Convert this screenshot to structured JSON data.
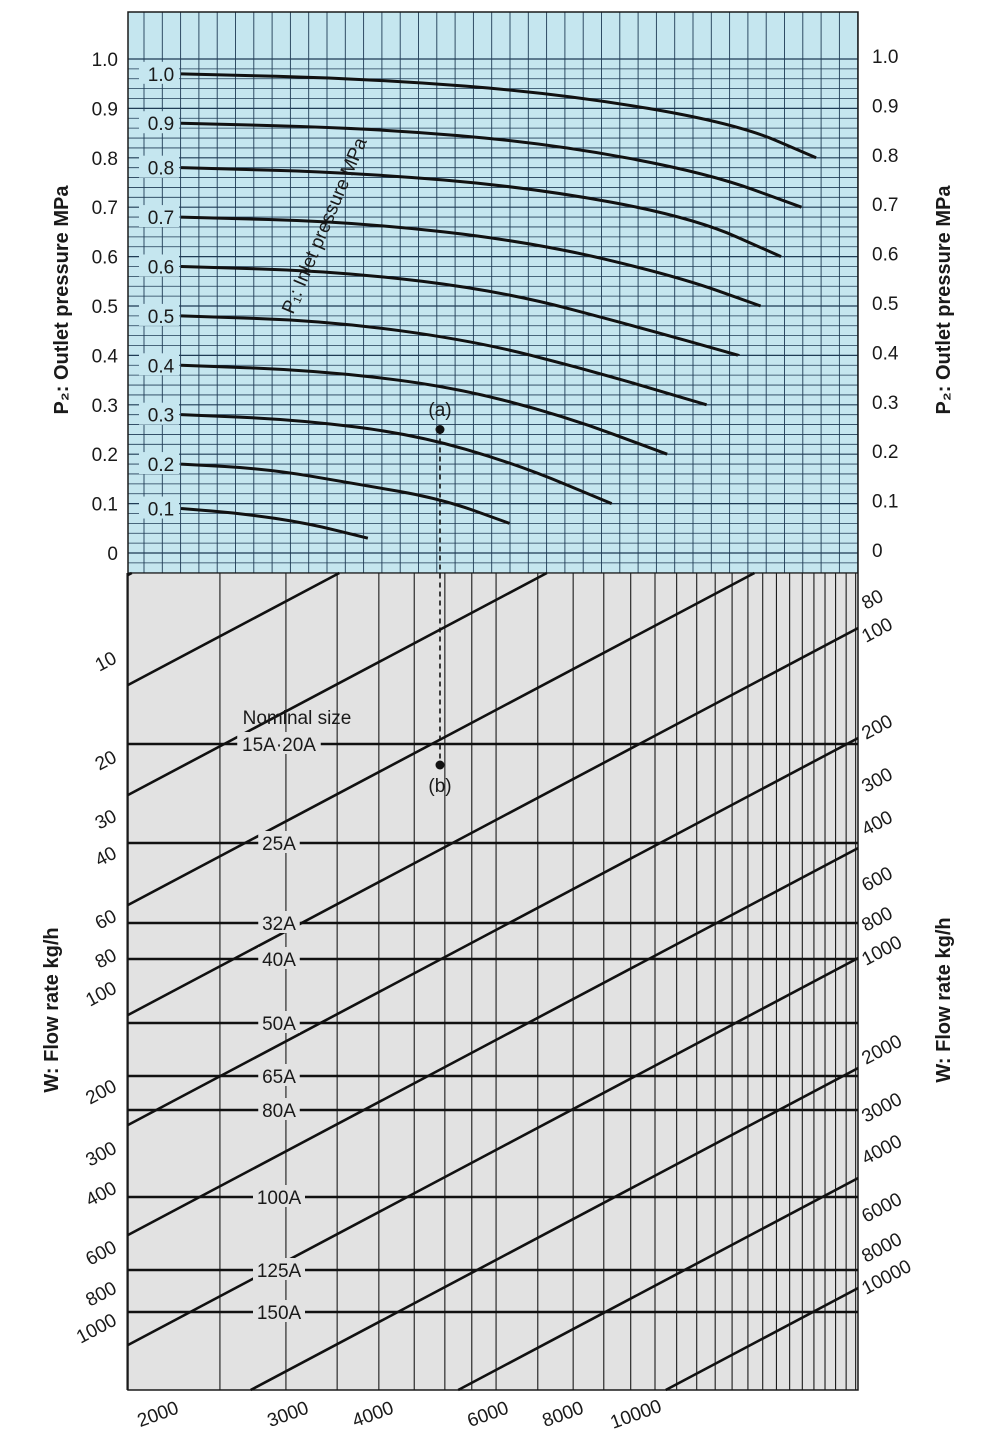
{
  "chart_data": {
    "type": "line",
    "title": "",
    "upper_panel": {
      "ylabel_left": "P₂: Outlet pressure MPa",
      "ylabel_right": "P₂: Outlet pressure MPa",
      "ylim": [
        0,
        1.0
      ],
      "yticks": [
        "0",
        "0.1",
        "0.2",
        "0.3",
        "0.4",
        "0.5",
        "0.6",
        "0.7",
        "0.8",
        "0.9",
        "1.0"
      ],
      "curve_set_label": "P₁: Inlet pressure MPa",
      "series": [
        {
          "name": "0.1",
          "points": [
            [
              0.0,
              0.09
            ],
            [
              0.42,
              0.08
            ],
            [
              0.87,
              0.06
            ],
            [
              1.28,
              0.03
            ]
          ]
        },
        {
          "name": "0.2",
          "points": [
            [
              0.0,
              0.18
            ],
            [
              0.6,
              0.17
            ],
            [
              1.2,
              0.14
            ],
            [
              1.78,
              0.11
            ],
            [
              2.25,
              0.06
            ]
          ]
        },
        {
          "name": "0.3",
          "points": [
            [
              0.0,
              0.28
            ],
            [
              0.8,
              0.27
            ],
            [
              1.6,
              0.24
            ],
            [
              2.3,
              0.18
            ],
            [
              2.95,
              0.1
            ]
          ]
        },
        {
          "name": "0.4",
          "points": [
            [
              0.0,
              0.38
            ],
            [
              0.9,
              0.37
            ],
            [
              1.8,
              0.34
            ],
            [
              2.6,
              0.28
            ],
            [
              3.33,
              0.2
            ]
          ]
        },
        {
          "name": "0.5",
          "points": [
            [
              0.0,
              0.48
            ],
            [
              1.0,
              0.47
            ],
            [
              2.0,
              0.43
            ],
            [
              2.8,
              0.37
            ],
            [
              3.6,
              0.3
            ]
          ]
        },
        {
          "name": "0.6",
          "points": [
            [
              0.0,
              0.58
            ],
            [
              1.1,
              0.57
            ],
            [
              2.2,
              0.53
            ],
            [
              3.1,
              0.46
            ],
            [
              3.82,
              0.4
            ]
          ]
        },
        {
          "name": "0.7",
          "points": [
            [
              0.0,
              0.68
            ],
            [
              1.2,
              0.67
            ],
            [
              2.4,
              0.63
            ],
            [
              3.4,
              0.56
            ],
            [
              3.97,
              0.5
            ]
          ]
        },
        {
          "name": "0.8",
          "points": [
            [
              0.0,
              0.78
            ],
            [
              1.2,
              0.77
            ],
            [
              2.4,
              0.74
            ],
            [
              3.5,
              0.68
            ],
            [
              4.11,
              0.6
            ]
          ]
        },
        {
          "name": "0.9",
          "points": [
            [
              0.0,
              0.87
            ],
            [
              1.3,
              0.86
            ],
            [
              2.5,
              0.83
            ],
            [
              3.6,
              0.77
            ],
            [
              4.25,
              0.7
            ]
          ]
        },
        {
          "name": "1.0",
          "points": [
            [
              0.0,
              0.97
            ],
            [
              1.3,
              0.96
            ],
            [
              2.6,
              0.93
            ],
            [
              3.8,
              0.87
            ],
            [
              4.35,
              0.8
            ]
          ]
        }
      ],
      "example_point": {
        "label": "(a)",
        "p1": 0.3,
        "p2": 0.25
      }
    },
    "lower_panel": {
      "nominal_size_title": "Nominal size",
      "nominal_sizes": [
        "15A·20A",
        "25A",
        "32A",
        "40A",
        "50A",
        "65A",
        "80A",
        "100A",
        "125A",
        "150A"
      ],
      "flow_left_ticks": [
        "10",
        "20",
        "30",
        "40",
        "60",
        "80",
        "100",
        "200",
        "300",
        "400",
        "600",
        "800",
        "1000"
      ],
      "flow_right_ticks": [
        "80",
        "100",
        "200",
        "300",
        "400",
        "600",
        "800",
        "1000",
        "2000",
        "3000",
        "4000",
        "6000",
        "8000",
        "10000"
      ],
      "flow_bottom_ticks": [
        "2000",
        "3000",
        "4000",
        "6000",
        "8000",
        "10000"
      ],
      "ylabel_left": "W: Flow rate kg/h",
      "ylabel_right": "W: Flow rate kg/h",
      "example_point": {
        "label": "(b)"
      }
    }
  }
}
